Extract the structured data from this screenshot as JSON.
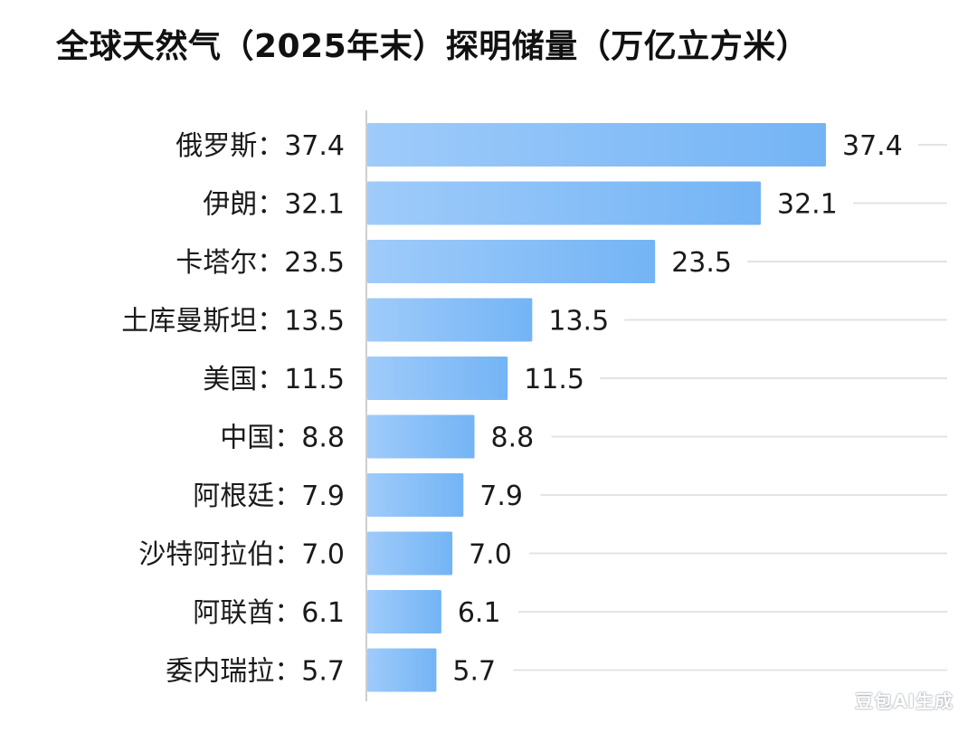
{
  "chart_data": {
    "type": "bar",
    "orientation": "horizontal",
    "title": "全球天然气（2025年末）探明储量（万亿立方米）",
    "categories": [
      "俄罗斯",
      "伊朗",
      "卡塔尔",
      "土库曼斯坦",
      "美国",
      "中国",
      "阿根廷",
      "沙特阿拉伯",
      "阿联酋",
      "委内瑞拉"
    ],
    "category_labels": [
      "俄罗斯：37.4",
      "伊朗：32.1",
      "卡塔尔：23.5",
      "土库曼斯坦：13.5",
      "美国：11.5",
      "中国：8.8",
      "阿根廷：7.9",
      "沙特阿拉伯：7.0",
      "阿联酋：6.1",
      "委内瑞拉：5.7"
    ],
    "values": [
      37.4,
      32.1,
      23.5,
      13.5,
      11.5,
      8.8,
      7.9,
      7.0,
      6.1,
      5.7
    ],
    "value_labels": [
      "37.4",
      "32.1",
      "23.5",
      "13.5",
      "11.5",
      "8.8",
      "7.9",
      "7.0",
      "6.1",
      "5.7"
    ],
    "xlim": [
      0,
      37.4
    ],
    "grid": true,
    "bar_color": "#74b4f5",
    "bar_color_light": "#9fcbfa"
  },
  "watermark": "豆包AI生成"
}
